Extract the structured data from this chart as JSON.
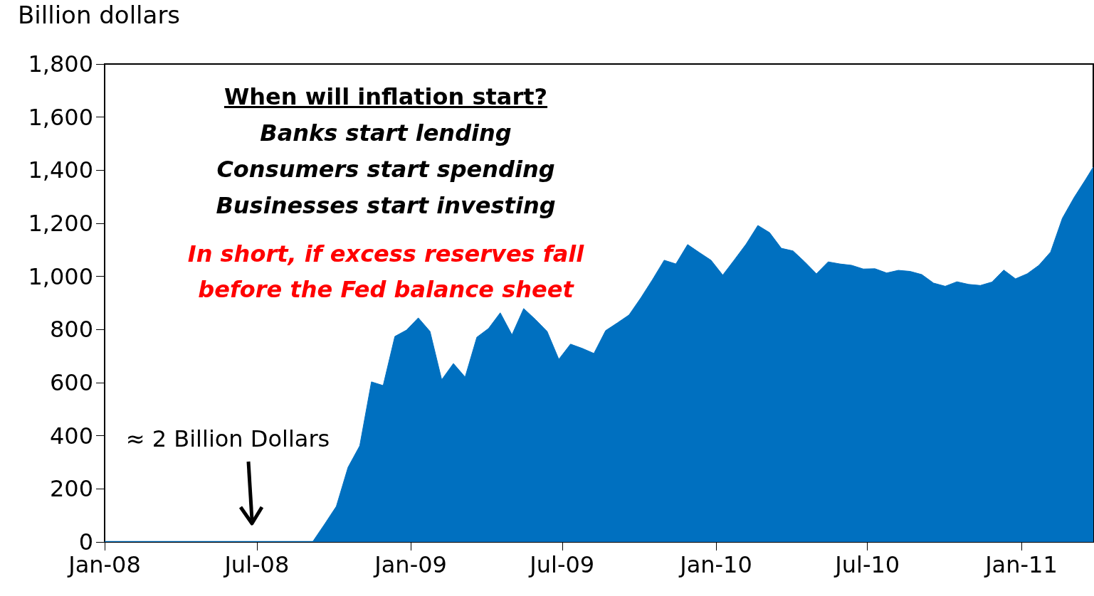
{
  "chart_data": {
    "type": "area",
    "ylabel": "Billion dollars",
    "x": [
      "2008-01-01",
      "2008-09-06",
      "2008-09-20",
      "2008-10-04",
      "2008-10-18",
      "2008-11-01",
      "2008-11-15",
      "2008-11-29",
      "2008-12-13",
      "2008-12-27",
      "2009-01-10",
      "2009-01-24",
      "2009-02-07",
      "2009-02-21",
      "2009-03-07",
      "2009-03-21",
      "2009-04-04",
      "2009-04-18",
      "2009-05-02",
      "2009-05-16",
      "2009-05-30",
      "2009-06-13",
      "2009-06-27",
      "2009-07-11",
      "2009-07-25",
      "2009-08-08",
      "2009-08-22",
      "2009-09-05",
      "2009-09-19",
      "2009-10-03",
      "2009-10-17",
      "2009-10-31",
      "2009-11-14",
      "2009-11-28",
      "2009-12-12",
      "2009-12-26",
      "2010-01-09",
      "2010-01-23",
      "2010-02-06",
      "2010-02-20",
      "2010-03-06",
      "2010-03-20",
      "2010-04-03",
      "2010-04-17",
      "2010-05-01",
      "2010-05-15",
      "2010-05-29",
      "2010-06-12",
      "2010-06-26",
      "2010-07-10",
      "2010-07-24",
      "2010-08-07",
      "2010-08-21",
      "2010-09-04",
      "2010-09-18",
      "2010-10-02",
      "2010-10-16",
      "2010-10-30",
      "2010-11-13",
      "2010-11-27",
      "2010-12-11",
      "2010-12-25",
      "2011-01-08",
      "2011-01-22",
      "2011-02-05",
      "2011-02-19",
      "2011-03-05",
      "2011-03-19",
      "2011-03-28"
    ],
    "series": [
      {
        "color": "#0070c0",
        "values": [
          2,
          2,
          67,
          134,
          281,
          362,
          603,
          589,
          774,
          798,
          844,
          793,
          611,
          672,
          621,
          771,
          804,
          863,
          780,
          879,
          838,
          793,
          688,
          745,
          729,
          710,
          796,
          825,
          855,
          919,
          988,
          1061,
          1047,
          1120,
          1090,
          1061,
          1005,
          1063,
          1122,
          1192,
          1165,
          1106,
          1096,
          1055,
          1010,
          1055,
          1047,
          1042,
          1028,
          1029,
          1013,
          1023,
          1019,
          1007,
          975,
          963,
          980,
          970,
          966,
          979,
          1024,
          991,
          1010,
          1042,
          1092,
          1219,
          1297,
          1366,
          1412
        ]
      }
    ],
    "xlim": [
      "2008-01-01",
      "2011-03-28"
    ],
    "xticks": [
      {
        "value": "2008-01",
        "label": "Jan-08"
      },
      {
        "value": "2008-07",
        "label": "Jul-08"
      },
      {
        "value": "2009-01",
        "label": "Jan-09"
      },
      {
        "value": "2009-07",
        "label": "Jul-09"
      },
      {
        "value": "2010-01",
        "label": "Jan-10"
      },
      {
        "value": "2010-07",
        "label": "Jul-10"
      },
      {
        "value": "2011-01",
        "label": "Jan-11"
      }
    ],
    "ylim": [
      0,
      1800
    ],
    "yticks": [
      0,
      200,
      400,
      600,
      800,
      {
        "value": 1000,
        "label": "1,000"
      },
      {
        "value": 1200,
        "label": "1,200"
      },
      {
        "value": 1400,
        "label": "1,400"
      },
      {
        "value": 1600,
        "label": "1,600"
      },
      {
        "value": 1800,
        "label": "1,800"
      }
    ],
    "marker": "none",
    "annotations": [
      "When will inflation start?",
      "Banks start lending",
      "Consumers start spending",
      "Businesses start investing",
      "In short, if excess reserves fall",
      "before the Fed balance sheet",
      "≈ 2 Billion Dollars"
    ]
  }
}
